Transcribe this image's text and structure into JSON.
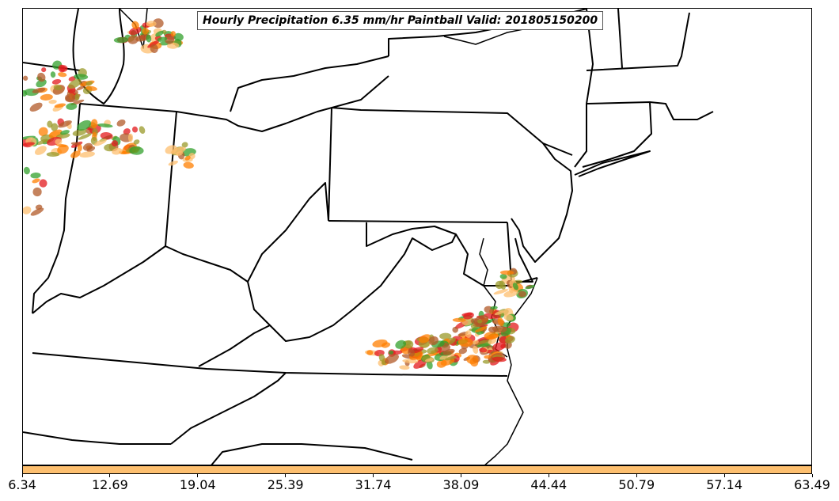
{
  "title": "Hourly Precipitation 6.35 mm/hr Paintball Valid: 201805150200",
  "colorbar": {
    "color": "#fdbf6f",
    "ticks": [
      "6.34",
      "12.69",
      "19.04",
      "25.39",
      "31.74",
      "38.09",
      "44.44",
      "50.79",
      "57.14",
      "63.49"
    ]
  },
  "paintball_colors": [
    "#e31a1c",
    "#ff7f00",
    "#33a02c",
    "#b15928",
    "#9a9a2a",
    "#fdbf6f"
  ]
}
